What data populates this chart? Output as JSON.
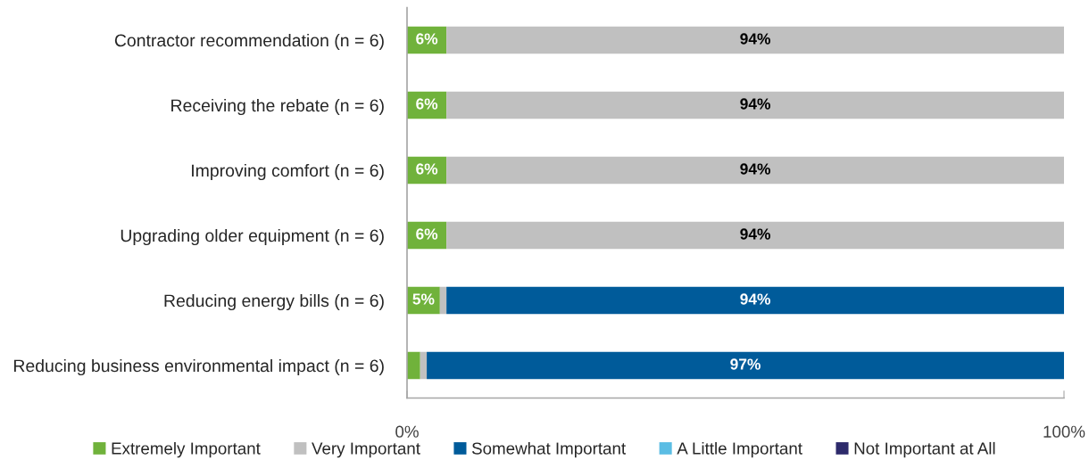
{
  "chart_data": {
    "type": "bar",
    "orientation": "horizontal",
    "stacked": true,
    "categories": [
      "Contractor recommendation (n = 6)",
      "Receiving the rebate (n = 6)",
      "Improving comfort (n = 6)",
      "Upgrading older equipment (n = 6)",
      "Reducing energy bills (n = 6)",
      "Reducing business environmental impact (n = 6)"
    ],
    "series": [
      {
        "name": "Extremely Important",
        "color": "#70b23b",
        "values": [
          6,
          6,
          6,
          6,
          5,
          2
        ],
        "value_labels": [
          "6%",
          "6%",
          "6%",
          "6%",
          "5%",
          null
        ]
      },
      {
        "name": "Very Important",
        "color": "#c0c0c0",
        "values": [
          94,
          94,
          94,
          94,
          1,
          1
        ],
        "value_labels": [
          "94%",
          "94%",
          "94%",
          "94%",
          null,
          null
        ]
      },
      {
        "name": "Somewhat Important",
        "color": "#005b9a",
        "values": [
          0,
          0,
          0,
          0,
          94,
          97
        ],
        "value_labels": [
          null,
          null,
          null,
          null,
          "94%",
          "97%"
        ]
      },
      {
        "name": "A Little Important",
        "color": "#5bbde4",
        "values": [
          0,
          0,
          0,
          0,
          0,
          0
        ]
      },
      {
        "name": "Not Important at All",
        "color": "#2d2a6b",
        "values": [
          0,
          0,
          0,
          0,
          0,
          0
        ]
      }
    ],
    "xlim": [
      0,
      100
    ],
    "xticks": [
      {
        "value": 0,
        "label": "0%"
      },
      {
        "value": 100,
        "label": "100%"
      }
    ],
    "legend": "bottom"
  }
}
